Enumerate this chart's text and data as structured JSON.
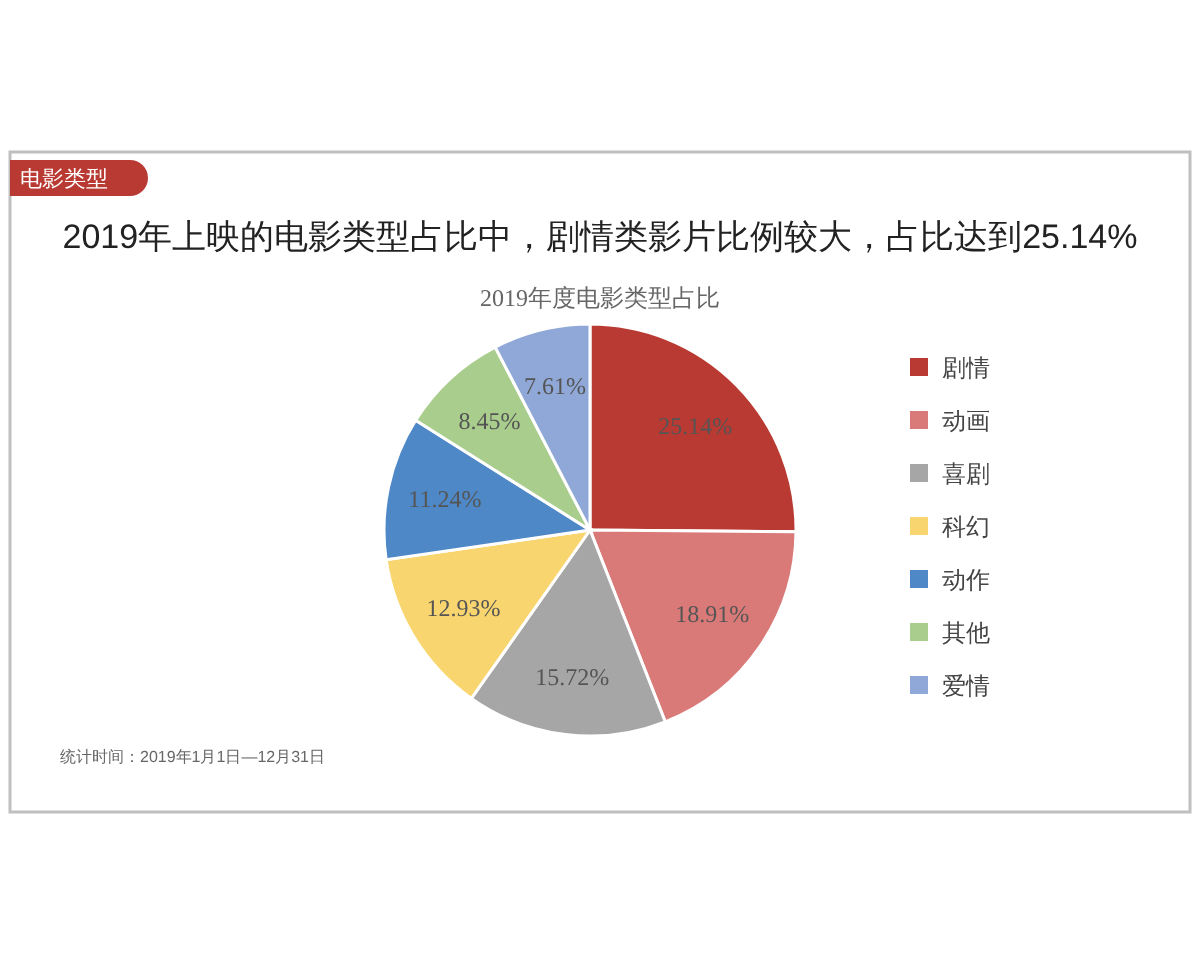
{
  "chart_data": {
    "type": "pie",
    "title": "2019年上映的电影类型占比中，剧情类影片比例较大，占比达到25.14%",
    "subtitle": "2019年度电影类型占比",
    "categories": [
      "剧情",
      "动画",
      "喜剧",
      "科幻",
      "动作",
      "其他",
      "爱情"
    ],
    "values": [
      25.14,
      18.91,
      15.72,
      12.93,
      11.24,
      8.45,
      7.61
    ],
    "colors": [
      "#b93a32",
      "#d97a78",
      "#a6a6a6",
      "#f8d56e",
      "#4f88c6",
      "#a9cd8c",
      "#8fa8d8"
    ],
    "value_labels": [
      "25.14%",
      "18.91%",
      "15.72%",
      "12.93%",
      "11.24%",
      "8.45%",
      "7.61%"
    ],
    "legend": "right",
    "annotations": [
      "电影类型",
      "统计时间：2019年1月1日—12月31日"
    ]
  }
}
